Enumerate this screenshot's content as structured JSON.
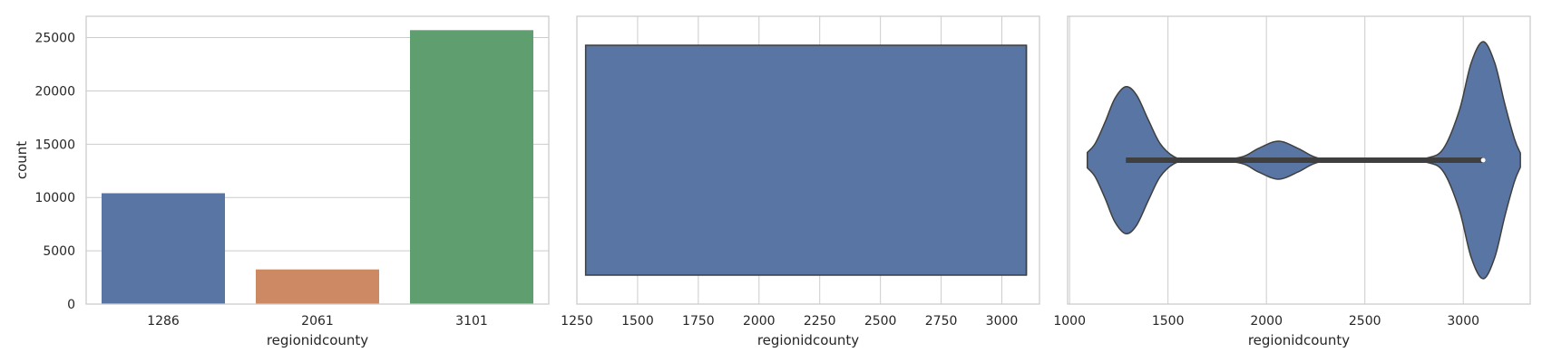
{
  "chart_data": [
    {
      "type": "bar",
      "categories": [
        "1286",
        "2061",
        "3101"
      ],
      "values": [
        10400,
        3250,
        25700
      ],
      "xlabel": "regionidcounty",
      "ylabel": "count",
      "ylim": [
        0,
        27000
      ],
      "yticks": [
        0,
        5000,
        10000,
        15000,
        20000,
        25000
      ],
      "colors": [
        "#5875a4",
        "#cc8963",
        "#5f9e6e"
      ],
      "grid": true
    },
    {
      "type": "box",
      "orientation": "horizontal",
      "xlabel": "regionidcounty",
      "xlim": [
        1250,
        3155
      ],
      "xticks": [
        1250,
        1500,
        1750,
        2000,
        2250,
        2500,
        2750,
        3000
      ],
      "box": {
        "q1": 1286,
        "median": 3101,
        "q3": 3101,
        "whisker_low": 1286,
        "whisker_high": 3101
      },
      "color": "#5875a4",
      "grid": true
    },
    {
      "type": "violin",
      "orientation": "horizontal",
      "xlabel": "regionidcounty",
      "xlim": [
        990,
        3340
      ],
      "xticks": [
        1000,
        1500,
        2000,
        2500,
        3000
      ],
      "density_profile": [
        [
          1090,
          0.065
        ],
        [
          1130,
          0.14
        ],
        [
          1180,
          0.32
        ],
        [
          1230,
          0.52
        ],
        [
          1286,
          0.62
        ],
        [
          1340,
          0.55
        ],
        [
          1400,
          0.34
        ],
        [
          1460,
          0.14
        ],
        [
          1530,
          0.03
        ],
        [
          1600,
          0.005
        ],
        [
          1750,
          0.002
        ],
        [
          1880,
          0.03
        ],
        [
          1960,
          0.1
        ],
        [
          2061,
          0.16
        ],
        [
          2160,
          0.1
        ],
        [
          2240,
          0.03
        ],
        [
          2320,
          0.005
        ],
        [
          2500,
          0.002
        ],
        [
          2700,
          0.003
        ],
        [
          2820,
          0.02
        ],
        [
          2900,
          0.1
        ],
        [
          2980,
          0.42
        ],
        [
          3040,
          0.82
        ],
        [
          3101,
          1.0
        ],
        [
          3160,
          0.82
        ],
        [
          3210,
          0.48
        ],
        [
          3260,
          0.18
        ],
        [
          3290,
          0.06
        ]
      ],
      "median": 3101,
      "iqr": [
        1286,
        3101
      ],
      "color": "#5875a4",
      "grid": true
    }
  ]
}
